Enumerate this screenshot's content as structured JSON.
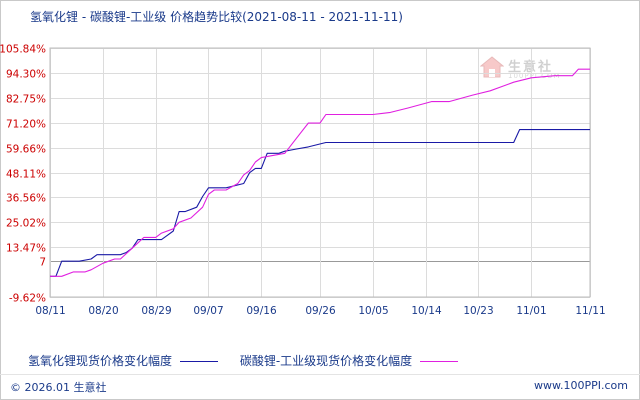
{
  "header": {
    "title": "氢氧化锂 - 碳酸锂-工业级 价格趋势比较",
    "date_range": "(2021-08-11 - 2021-11-11)"
  },
  "watermark": {
    "text": "生意社",
    "sub": "100PPI.COM"
  },
  "footer": {
    "copyright": "© 2026.01 生意社",
    "site": "www.100PPI.com"
  },
  "colors": {
    "series1": "#1a1aa6",
    "series2": "#e020e0",
    "ytick": "#cc0000",
    "grid": "#dcdcdc",
    "zero_line": "#999999"
  },
  "chart_data": {
    "type": "line",
    "title": "氢氧化锂 - 碳酸锂-工业级 价格趋势比较",
    "x_range": [
      "2021-08-11",
      "2021-11-11"
    ],
    "ylim": [
      -9.62,
      105.84
    ],
    "y_ticks": [
      "105.84%",
      "94.30%",
      "82.75%",
      "71.20%",
      "59.66%",
      "48.11%",
      "36.56%",
      "25.02%",
      "13.47%",
      "7",
      "-9.62%"
    ],
    "y_tick_values": [
      105.84,
      94.3,
      82.75,
      71.2,
      59.66,
      48.11,
      36.56,
      25.02,
      13.47,
      7,
      -9.62
    ],
    "x_ticks": [
      "08/11",
      "08/20",
      "08/29",
      "09/07",
      "09/16",
      "09/26",
      "10/05",
      "10/14",
      "10/23",
      "11/01",
      "11/11"
    ],
    "grid": true,
    "legend_position": "bottom",
    "series": [
      {
        "name": "氢氧化锂现货价格变化幅度",
        "color": "#1a1aa6",
        "x": [
          "2021-08-11",
          "2021-08-12",
          "2021-08-13",
          "2021-08-16",
          "2021-08-18",
          "2021-08-19",
          "2021-08-23",
          "2021-08-24",
          "2021-08-25",
          "2021-08-26",
          "2021-08-30",
          "2021-08-31",
          "2021-09-01",
          "2021-09-02",
          "2021-09-03",
          "2021-09-05",
          "2021-09-06",
          "2021-09-07",
          "2021-09-10",
          "2021-09-13",
          "2021-09-14",
          "2021-09-15",
          "2021-09-16",
          "2021-09-17",
          "2021-09-19",
          "2021-09-20",
          "2021-09-22",
          "2021-09-24",
          "2021-09-27",
          "2021-10-29",
          "2021-10-30",
          "2021-11-11"
        ],
        "y": [
          0,
          0,
          7,
          7,
          8,
          10,
          10,
          11,
          13,
          17,
          17,
          19,
          21,
          30,
          30,
          32,
          37,
          41,
          41,
          43,
          48,
          50,
          50,
          57,
          57,
          58,
          59,
          60,
          62,
          62,
          68,
          68
        ]
      },
      {
        "name": "碳酸锂-工业级现货价格变化幅度",
        "color": "#e020e0",
        "x": [
          "2021-08-11",
          "2021-08-13",
          "2021-08-15",
          "2021-08-17",
          "2021-08-18",
          "2021-08-20",
          "2021-08-22",
          "2021-08-23",
          "2021-08-25",
          "2021-08-27",
          "2021-08-29",
          "2021-08-30",
          "2021-09-01",
          "2021-09-02",
          "2021-09-04",
          "2021-09-06",
          "2021-09-07",
          "2021-09-08",
          "2021-09-10",
          "2021-09-12",
          "2021-09-13",
          "2021-09-14",
          "2021-09-15",
          "2021-09-16",
          "2021-09-20",
          "2021-09-22",
          "2021-09-24",
          "2021-09-26",
          "2021-09-27",
          "2021-09-30",
          "2021-10-05",
          "2021-10-08",
          "2021-10-11",
          "2021-10-15",
          "2021-10-18",
          "2021-10-22",
          "2021-10-25",
          "2021-10-27",
          "2021-10-29",
          "2021-11-01",
          "2021-11-05",
          "2021-11-08",
          "2021-11-09",
          "2021-11-11"
        ],
        "y": [
          0,
          0,
          2,
          2,
          3,
          6,
          8,
          8,
          13,
          18,
          18,
          20,
          22,
          25,
          27,
          32,
          38,
          40,
          40,
          43,
          47,
          49,
          53,
          55,
          57,
          64,
          71,
          71,
          75,
          75,
          75,
          76,
          78,
          81,
          81,
          84,
          86,
          88,
          90,
          92,
          93,
          93,
          96,
          96
        ]
      }
    ]
  }
}
